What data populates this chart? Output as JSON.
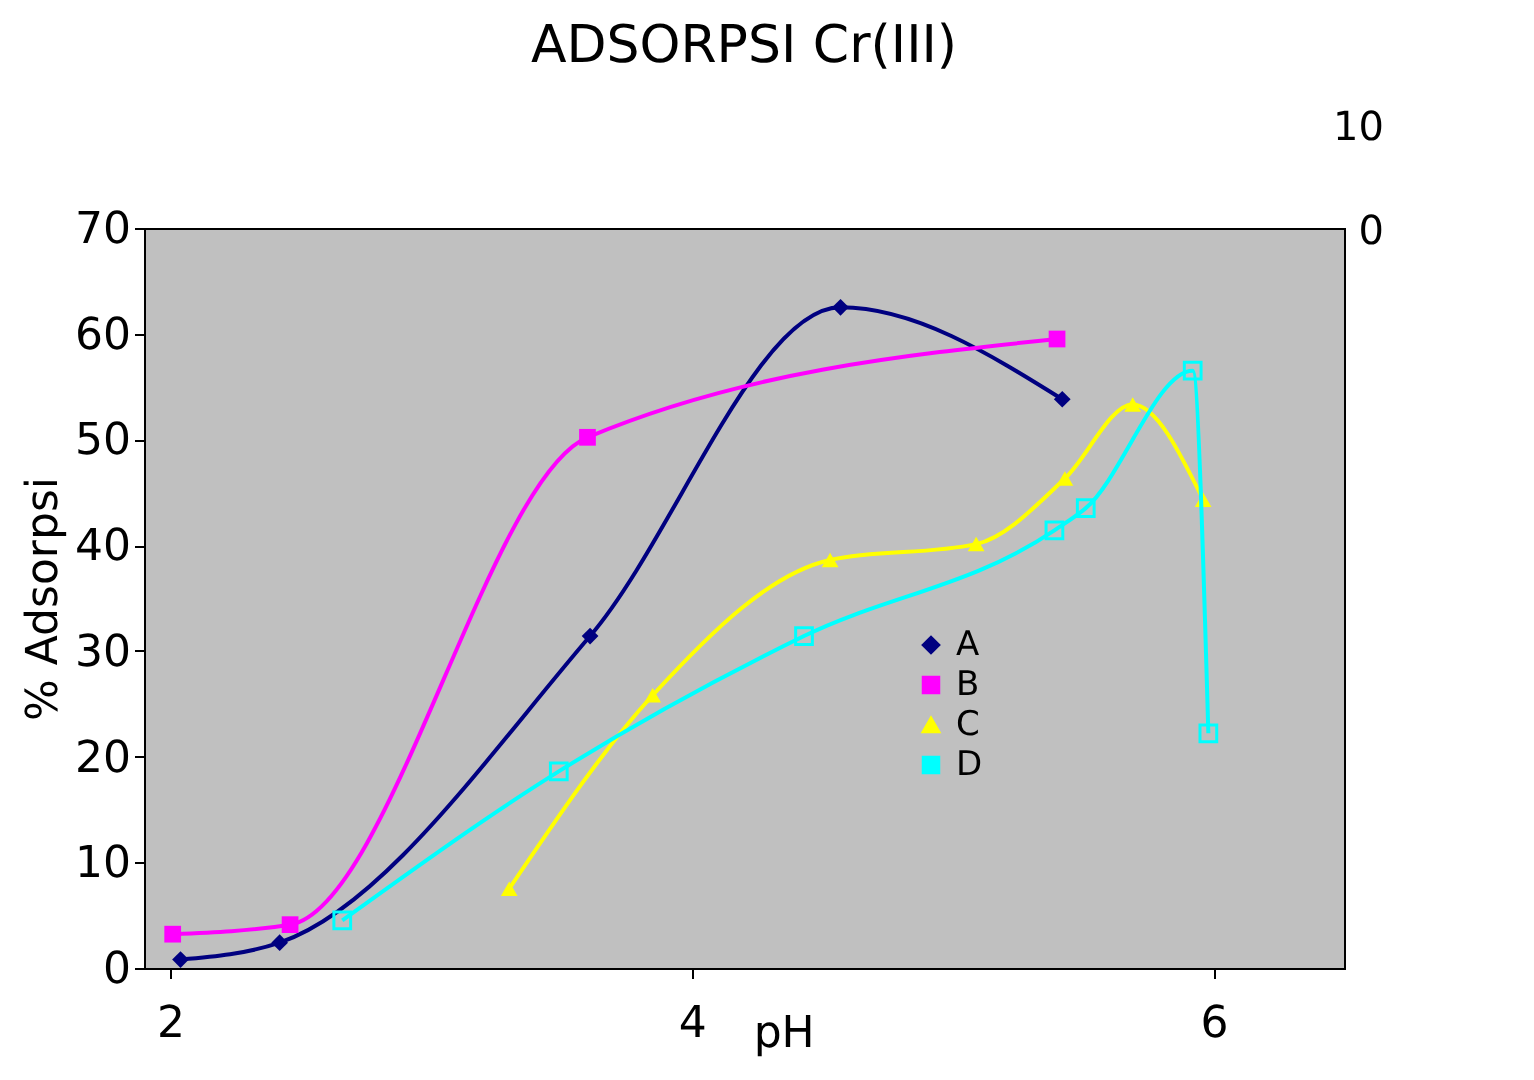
{
  "chart_data": {
    "type": "line",
    "title": "ADSORPSI Cr(III)",
    "xlabel": "pH",
    "ylabel": "% Adsorpsi",
    "xlim": [
      1.9,
      6.5
    ],
    "xticks": [
      2,
      4,
      6
    ],
    "ylim": [
      0,
      70
    ],
    "yticks": [
      0,
      10,
      20,
      30,
      40,
      50,
      60,
      70
    ],
    "grid": false,
    "annotations": [
      "10",
      "0"
    ],
    "legend": "right",
    "line_style": "solid",
    "series": [
      {
        "name": "A",
        "color": "#000080",
        "marker": "diamond",
        "x": [
          2.04,
          2.42,
          3.61,
          4.57,
          5.42
        ],
        "values": [
          0.8,
          2.4,
          31.4,
          62.5,
          53.8
        ]
      },
      {
        "name": "B",
        "color": "#ff00ff",
        "marker": "square",
        "x": [
          2.01,
          2.46,
          3.6,
          5.4
        ],
        "values": [
          3.2,
          4.1,
          50.2,
          59.5
        ]
      },
      {
        "name": "C",
        "color": "#ffff00",
        "marker": "triangle",
        "x": [
          3.3,
          3.85,
          4.53,
          5.09,
          5.43,
          5.69,
          5.96
        ],
        "values": [
          7.5,
          25.8,
          38.6,
          40.1,
          46.3,
          53.3,
          44.3
        ]
      },
      {
        "name": "D",
        "color": "#00ffff",
        "marker": "square",
        "x": [
          2.66,
          3.49,
          4.43,
          5.39,
          5.51,
          5.92,
          5.98
        ],
        "values": [
          4.5,
          18.6,
          31.4,
          41.4,
          43.5,
          56.5,
          22.2
        ]
      }
    ]
  }
}
